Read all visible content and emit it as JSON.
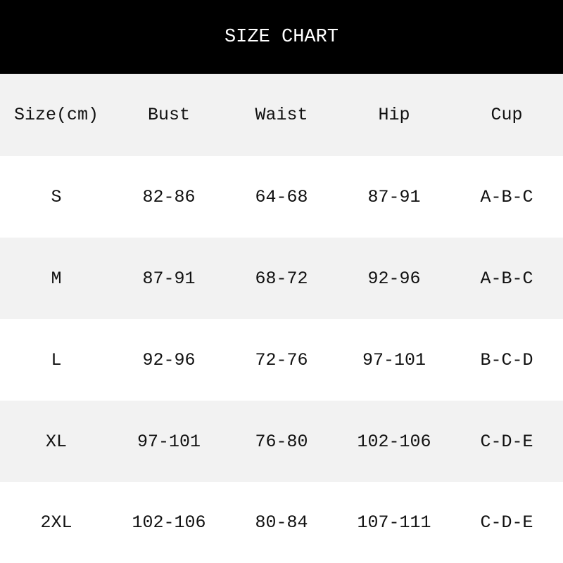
{
  "title": "SIZE CHART",
  "columns": [
    "Size(cm)",
    "Bust",
    "Waist",
    "Hip",
    "Cup"
  ],
  "rows": [
    [
      "S",
      "82-86",
      "64-68",
      "87-91",
      "A-B-C"
    ],
    [
      "M",
      "87-91",
      "68-72",
      "92-96",
      "A-B-C"
    ],
    [
      "L",
      "92-96",
      "72-76",
      "97-101",
      "B-C-D"
    ],
    [
      "XL",
      "97-101",
      "76-80",
      "102-106",
      "C-D-E"
    ],
    [
      "2XL",
      "102-106",
      "80-84",
      "107-111",
      "C-D-E"
    ]
  ],
  "colors": {
    "header_bg": "#000000",
    "stripe": "#f2f2f2",
    "background": "#ffffff"
  }
}
